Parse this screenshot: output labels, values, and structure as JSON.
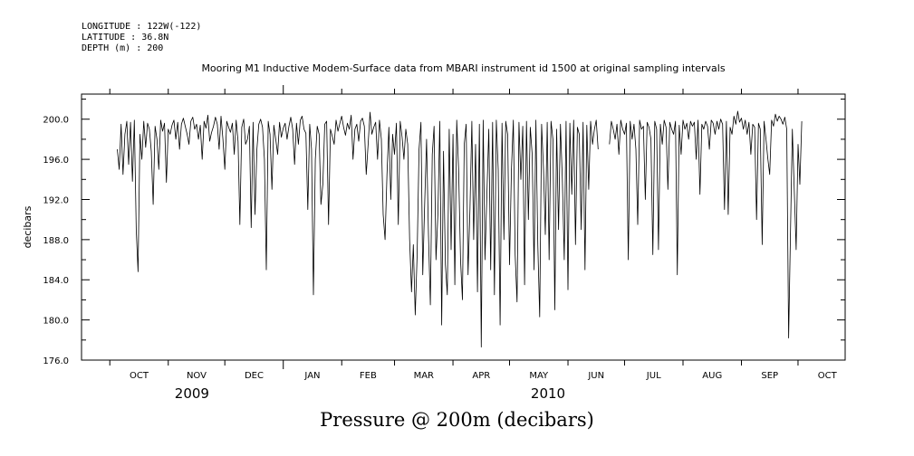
{
  "header": {
    "longitude": "LONGITUDE : 122W(-122)",
    "latitude": "LATITUDE : 36.8N",
    "depth": "DEPTH (m) : 200",
    "title": "Mooring M1 Inductive Modem-Surface data from MBARI instrument id 1500 at original sampling intervals"
  },
  "footer": {
    "title": "Pressure @ 200m (decibars)"
  },
  "chart_data": {
    "type": "line",
    "title": "Mooring M1 Inductive Modem-Surface data from MBARI instrument id 1500 at original sampling intervals",
    "xlabel": "",
    "ylabel": "decibars",
    "ylim": [
      176.0,
      202.5
    ],
    "yticks": [
      176.0,
      180.0,
      184.0,
      188.0,
      192.0,
      196.0,
      200.0
    ],
    "ytick_labels": [
      "176.0",
      "180.0",
      "184.0",
      "188.0",
      "192.0",
      "196.0",
      "200.0"
    ],
    "xlim": [
      "2009-09-16",
      "2010-10-26"
    ],
    "month_labels": [
      "OCT",
      "NOV",
      "DEC",
      "JAN",
      "FEB",
      "MAR",
      "APR",
      "MAY",
      "JUN",
      "JUL",
      "AUG",
      "SEP",
      "OCT"
    ],
    "year_labels": [
      "2009",
      "2010"
    ],
    "grid": false,
    "series": [
      {
        "name": "",
        "x_start": "2009-10-05",
        "step_days": 1,
        "values": [
          197.0,
          195.0,
          199.5,
          194.5,
          198.5,
          199.8,
          195.5,
          199.7,
          193.8,
          199.9,
          189.0,
          184.8,
          198.5,
          196.0,
          199.8,
          197.2,
          199.6,
          199.0,
          196.8,
          191.5,
          199.3,
          198.0,
          195.0,
          199.9,
          198.8,
          199.6,
          193.7,
          199.0,
          198.5,
          199.4,
          199.9,
          198.0,
          199.7,
          197.0,
          199.5,
          200.1,
          199.3,
          198.5,
          197.5,
          199.8,
          200.2,
          199.0,
          199.5,
          198.0,
          199.4,
          196.0,
          199.8,
          199.1,
          200.4,
          197.8,
          198.7,
          199.3,
          200.2,
          199.5,
          197.0,
          200.3,
          198.0,
          195.0,
          199.8,
          199.2,
          198.7,
          199.6,
          196.5,
          199.9,
          197.8,
          189.5,
          199.2,
          200.0,
          197.5,
          198.0,
          199.3,
          189.2,
          199.7,
          190.5,
          197.0,
          199.5,
          200.0,
          199.2,
          196.0,
          185.0,
          199.8,
          198.5,
          193.0,
          199.4,
          198.0,
          196.5,
          199.7,
          198.2,
          199.1,
          199.6,
          198.0,
          199.3,
          200.2,
          199.0,
          195.5,
          199.6,
          197.5,
          199.9,
          200.3,
          199.0,
          198.6,
          191.0,
          199.5,
          197.0,
          182.5,
          196.0,
          199.3,
          198.5,
          191.5,
          193.5,
          199.5,
          199.8,
          189.5,
          199.0,
          198.3,
          197.5,
          199.9,
          198.8,
          199.6,
          200.3,
          199.2,
          198.4,
          199.6,
          199.0,
          200.4,
          196.0,
          199.0,
          199.5,
          197.8,
          199.8,
          200.1,
          199.3,
          194.5,
          197.5,
          200.7,
          198.5,
          199.2,
          199.7,
          196.0,
          199.9,
          198.0,
          190.5,
          188.0,
          194.5,
          199.2,
          192.0,
          198.5,
          196.5,
          199.6,
          189.5,
          199.8,
          198.2,
          196.0,
          199.0,
          197.5,
          188.0,
          182.8,
          187.5,
          180.5,
          186.5,
          197.0,
          199.7,
          184.5,
          191.5,
          198.0,
          188.5,
          181.5,
          196.5,
          199.3,
          186.0,
          190.5,
          199.8,
          179.5,
          196.8,
          185.5,
          182.5,
          199.0,
          187.0,
          198.5,
          183.5,
          199.9,
          195.0,
          186.0,
          182.0,
          197.5,
          199.5,
          184.5,
          191.0,
          199.8,
          188.0,
          197.5,
          182.8,
          199.5,
          177.3,
          199.9,
          186.0,
          192.5,
          199.0,
          185.0,
          199.7,
          182.5,
          199.9,
          195.0,
          179.5,
          199.6,
          188.0,
          199.8,
          198.5,
          185.5,
          195.0,
          199.9,
          186.5,
          181.8,
          199.7,
          194.0,
          199.3,
          183.5,
          199.8,
          190.0,
          199.2,
          196.5,
          185.0,
          199.9,
          187.5,
          180.3,
          199.5,
          195.0,
          188.5,
          199.7,
          186.0,
          199.8,
          198.0,
          181.0,
          199.0,
          189.0,
          199.5,
          194.0,
          186.0,
          199.8,
          183.0,
          199.6,
          192.5,
          199.9,
          187.5,
          199.2,
          198.5,
          189.0,
          199.7,
          185.0,
          199.4,
          193.0,
          199.8,
          197.5,
          199.0,
          199.9,
          197.0,
          null,
          null,
          null,
          null,
          null,
          197.5,
          199.8,
          199.0,
          198.0,
          199.5,
          196.5,
          199.9,
          199.0,
          198.5,
          199.6,
          186.0,
          199.8,
          198.0,
          199.5,
          197.0,
          189.5,
          199.9,
          199.0,
          199.3,
          192.0,
          199.7,
          199.2,
          198.0,
          186.5,
          199.8,
          199.0,
          187.0,
          199.5,
          197.5,
          199.9,
          199.2,
          193.0,
          199.7,
          199.0,
          198.5,
          199.8,
          184.5,
          199.4,
          196.5,
          199.9,
          199.0,
          199.6,
          198.0,
          199.8,
          199.3,
          199.7,
          196.0,
          199.9,
          192.5,
          199.5,
          199.0,
          199.8,
          199.3,
          197.0,
          199.9,
          199.6,
          198.5,
          199.8,
          199.0,
          200.0,
          199.5,
          191.0,
          199.8,
          190.5,
          199.2,
          198.5,
          200.3,
          199.5,
          200.8,
          199.7,
          200.1,
          199.0,
          199.9,
          198.5,
          199.7,
          196.5,
          199.5,
          199.2,
          190.0,
          199.6,
          199.0,
          187.5,
          199.8,
          198.0,
          196.0,
          194.5,
          199.9,
          199.3,
          200.5,
          199.8,
          200.3,
          200.0,
          199.5,
          200.2,
          199.0,
          178.2,
          188.5,
          199.0,
          193.0,
          187.0,
          197.5,
          193.5,
          199.8
        ]
      }
    ]
  }
}
